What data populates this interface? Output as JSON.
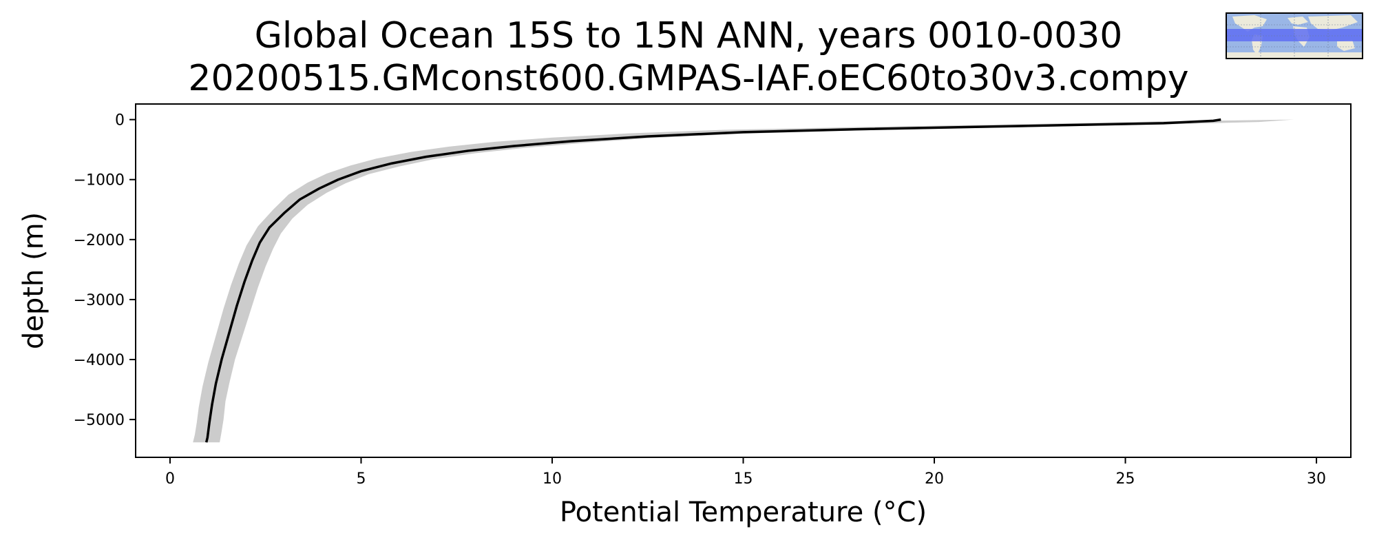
{
  "title": "Global Ocean 15S to 15N ANN, years 0010-0030",
  "subtitle": "20200515.GMconst600.GMPAS-IAF.oEC60to30v3.compy",
  "inset_map": {
    "icon": "world-map-region-icon",
    "region": "15S to 15N",
    "ocean_color": "#9ab6e6",
    "land_color": "#eceadb",
    "band_color": "#5f6ff2"
  },
  "chart_data": {
    "type": "line",
    "title": "Global Ocean 15S to 15N ANN, years 0010-0030",
    "subtitle": "20200515.GMconst600.GMPAS-IAF.oEC60to30v3.compy",
    "xlabel": "Potential Temperature (°C)",
    "ylabel": "depth (m)",
    "xlim": [
      -0.9,
      30.9
    ],
    "ylim": [
      -5630,
      260
    ],
    "xticks": [
      "0",
      "5",
      "10",
      "15",
      "20",
      "25",
      "30"
    ],
    "yticks": [
      "0",
      "−1000",
      "−2000",
      "−3000",
      "−4000",
      "−5000"
    ],
    "xtick_values": [
      0,
      5,
      10,
      15,
      20,
      25,
      30
    ],
    "ytick_values": [
      0,
      -1000,
      -2000,
      -3000,
      -4000,
      -5000
    ],
    "grid": false,
    "series": [
      {
        "kind": "line",
        "color": "#000000",
        "points": [
          [
            27.5,
            0
          ],
          [
            27.3,
            -20
          ],
          [
            26.0,
            -60
          ],
          [
            22.0,
            -110
          ],
          [
            18.0,
            -160
          ],
          [
            15.0,
            -210
          ],
          [
            12.5,
            -280
          ],
          [
            10.5,
            -360
          ],
          [
            9.0,
            -440
          ],
          [
            7.8,
            -520
          ],
          [
            6.7,
            -620
          ],
          [
            5.8,
            -730
          ],
          [
            5.0,
            -860
          ],
          [
            4.4,
            -1000
          ],
          [
            3.9,
            -1150
          ],
          [
            3.4,
            -1330
          ],
          [
            3.0,
            -1550
          ],
          [
            2.6,
            -1800
          ],
          [
            2.35,
            -2050
          ],
          [
            2.15,
            -2350
          ],
          [
            1.95,
            -2700
          ],
          [
            1.75,
            -3100
          ],
          [
            1.55,
            -3550
          ],
          [
            1.35,
            -4000
          ],
          [
            1.2,
            -4400
          ],
          [
            1.1,
            -4750
          ],
          [
            1.03,
            -5050
          ],
          [
            0.98,
            -5300
          ],
          [
            0.95,
            -5380
          ]
        ]
      },
      {
        "kind": "band",
        "color": "#cccccc",
        "upper": [
          [
            29.4,
            0
          ],
          [
            28.5,
            -40
          ],
          [
            26.0,
            -80
          ],
          [
            22.0,
            -130
          ],
          [
            18.0,
            -180
          ],
          [
            15.0,
            -235
          ],
          [
            12.5,
            -310
          ],
          [
            10.8,
            -390
          ],
          [
            9.3,
            -470
          ],
          [
            8.0,
            -560
          ],
          [
            6.9,
            -660
          ],
          [
            6.0,
            -780
          ],
          [
            5.2,
            -910
          ],
          [
            4.6,
            -1060
          ],
          [
            4.1,
            -1220
          ],
          [
            3.6,
            -1420
          ],
          [
            3.2,
            -1650
          ],
          [
            2.9,
            -1900
          ],
          [
            2.7,
            -2150
          ],
          [
            2.5,
            -2450
          ],
          [
            2.3,
            -2800
          ],
          [
            2.1,
            -3200
          ],
          [
            1.9,
            -3600
          ],
          [
            1.7,
            -4000
          ],
          [
            1.55,
            -4400
          ],
          [
            1.45,
            -4700
          ],
          [
            1.4,
            -5000
          ],
          [
            1.35,
            -5200
          ],
          [
            1.3,
            -5380
          ]
        ],
        "lower": [
          [
            29.4,
            0
          ],
          [
            26.0,
            -30
          ],
          [
            22.0,
            -80
          ],
          [
            18.0,
            -125
          ],
          [
            14.5,
            -170
          ],
          [
            12.0,
            -230
          ],
          [
            10.0,
            -300
          ],
          [
            8.5,
            -370
          ],
          [
            7.3,
            -450
          ],
          [
            6.3,
            -540
          ],
          [
            5.4,
            -650
          ],
          [
            4.7,
            -770
          ],
          [
            4.1,
            -900
          ],
          [
            3.6,
            -1050
          ],
          [
            3.1,
            -1250
          ],
          [
            2.7,
            -1500
          ],
          [
            2.3,
            -1780
          ],
          [
            2.0,
            -2100
          ],
          [
            1.8,
            -2400
          ],
          [
            1.6,
            -2750
          ],
          [
            1.4,
            -3150
          ],
          [
            1.2,
            -3600
          ],
          [
            1.0,
            -4050
          ],
          [
            0.85,
            -4450
          ],
          [
            0.75,
            -4800
          ],
          [
            0.7,
            -5050
          ],
          [
            0.65,
            -5250
          ],
          [
            0.6,
            -5380
          ]
        ]
      }
    ]
  }
}
